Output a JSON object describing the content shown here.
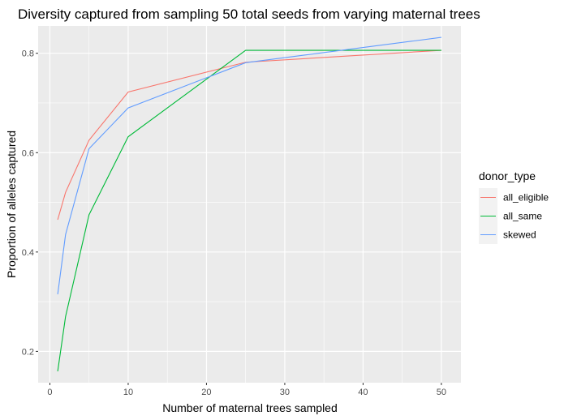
{
  "chart_data": {
    "type": "line",
    "title": "Diversity captured from sampling 50 total seeds from varying maternal trees",
    "xlabel": "Number of maternal trees sampled",
    "ylabel": "Proportion of alleles captured",
    "xlim": [
      -1.5,
      52.5
    ],
    "ylim": [
      0.137,
      0.855
    ],
    "xticks": [
      0,
      10,
      20,
      30,
      40,
      50
    ],
    "xtick_labels": [
      "0",
      "10",
      "20",
      "30",
      "40",
      "50"
    ],
    "yticks": [
      0.2,
      0.4,
      0.6,
      0.8
    ],
    "ytick_labels": [
      "0.2",
      "0.4",
      "0.6",
      "0.8"
    ],
    "grid": true,
    "legend_title": "donor_type",
    "legend_position": "right",
    "background": "#ebebeb",
    "x": [
      1,
      2,
      5,
      10,
      25,
      50
    ],
    "series": [
      {
        "name": "all_eligible",
        "color": "#F8766D",
        "values": [
          0.465,
          0.52,
          0.625,
          0.722,
          0.782,
          0.806
        ]
      },
      {
        "name": "all_same",
        "color": "#00BA38",
        "values": [
          0.16,
          0.27,
          0.475,
          0.632,
          0.806,
          0.806
        ]
      },
      {
        "name": "skewed",
        "color": "#619CFF",
        "values": [
          0.315,
          0.435,
          0.608,
          0.69,
          0.781,
          0.832
        ]
      }
    ]
  }
}
